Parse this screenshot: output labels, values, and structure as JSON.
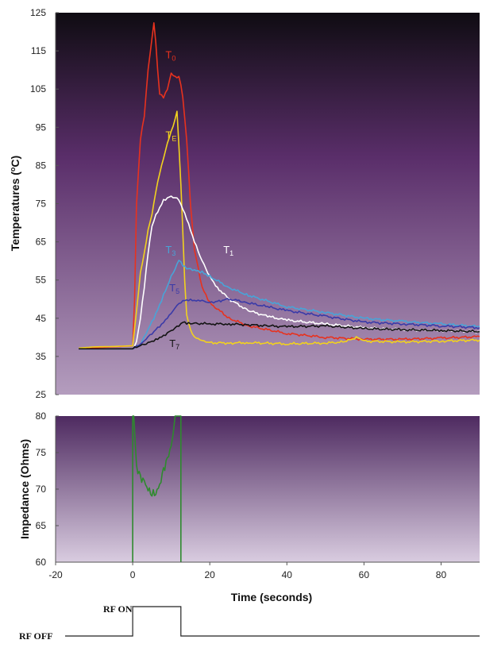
{
  "chart_data": [
    {
      "type": "line",
      "title": "",
      "xlabel": "",
      "ylabel": "Temperatures (°C)",
      "ylabel_parts": {
        "main": "Temperatures (",
        "sup": "o",
        "rest": "C)"
      },
      "xlim": [
        -20,
        90
      ],
      "ylim": [
        25,
        125
      ],
      "yticks": [
        25,
        35,
        45,
        55,
        65,
        75,
        85,
        95,
        105,
        115,
        125
      ],
      "grid": false,
      "colors": {
        "bg_top": "#0f0c12",
        "bg_mid": "#5a2e6a",
        "bg_bottom": "#b49dbe"
      },
      "series": [
        {
          "name": "T0",
          "label_main": "T",
          "label_sub": "0",
          "color": "#e8321e",
          "label_at": [
            8.5,
            113
          ],
          "x": [
            -14,
            -10,
            -5,
            0,
            0.5,
            1,
            2,
            3,
            4,
            5,
            5.5,
            6,
            6.5,
            7,
            8,
            9,
            10,
            11,
            12,
            12.5,
            13,
            14,
            15,
            16,
            18,
            20,
            25,
            30,
            40,
            50,
            60,
            70,
            80,
            90
          ],
          "y": [
            37,
            37.3,
            37.5,
            37.8,
            50,
            75,
            92,
            98,
            110,
            118,
            122,
            117,
            110,
            104,
            103,
            105,
            109,
            108,
            108,
            106,
            103,
            92,
            75,
            63,
            53,
            49,
            45,
            43,
            41,
            40,
            39.5,
            39.5,
            39.8,
            40.2
          ]
        },
        {
          "name": "TE",
          "label_main": "T",
          "label_sub": "E",
          "color": "#f2d21e",
          "label_at": [
            8.5,
            92
          ],
          "x": [
            -14,
            -10,
            -5,
            0,
            1,
            2,
            3,
            4,
            5,
            6,
            7,
            8,
            9,
            10,
            11,
            11.5,
            12,
            12.5,
            13,
            13.5,
            14,
            15,
            16,
            18,
            20,
            25,
            30,
            40,
            50,
            55,
            58,
            60,
            70,
            80,
            90
          ],
          "y": [
            37.2,
            37.5,
            37.6,
            37.8,
            47,
            57,
            62,
            68,
            72,
            78,
            83,
            87,
            91,
            94,
            97,
            99,
            90,
            80,
            68,
            55,
            46,
            42,
            40,
            39,
            38.6,
            38.5,
            38.6,
            38.3,
            38.5,
            38.8,
            40,
            39,
            38.8,
            39,
            39.3
          ]
        },
        {
          "name": "T1",
          "label_main": "T",
          "label_sub": "1",
          "color": "#ffffff",
          "label_at": [
            23.5,
            62
          ],
          "x": [
            -14,
            -10,
            -5,
            0,
            1,
            2,
            3,
            4,
            5,
            6,
            8,
            10,
            12,
            14,
            16,
            18,
            20,
            22,
            25,
            30,
            35,
            40,
            50,
            60,
            70,
            80,
            90
          ],
          "y": [
            37,
            37,
            37,
            37,
            39,
            45,
            53,
            62,
            69,
            72,
            76,
            77,
            76,
            71,
            65,
            60,
            56,
            53,
            50,
            47,
            45.5,
            44.5,
            43.5,
            42.5,
            42,
            41.8,
            41.5
          ]
        },
        {
          "name": "T3",
          "label_main": "T",
          "label_sub": "3",
          "color": "#48a4d8",
          "label_at": [
            8.5,
            62
          ],
          "x": [
            -14,
            -10,
            -5,
            0,
            2,
            4,
            6,
            8,
            10,
            11,
            12,
            13,
            14,
            16,
            18,
            20,
            25,
            30,
            40,
            50,
            60,
            70,
            80,
            90
          ],
          "y": [
            37,
            37,
            37,
            37,
            38,
            42,
            46,
            51,
            56,
            58,
            60.5,
            59,
            58,
            57.5,
            57,
            56,
            53,
            51,
            48,
            46.5,
            45,
            44.2,
            43.5,
            42.8
          ]
        },
        {
          "name": "T5",
          "label_main": "T",
          "label_sub": "5",
          "color": "#3a3aa8",
          "label_at": [
            9.5,
            52
          ],
          "x": [
            -14,
            -10,
            -5,
            0,
            2,
            4,
            6,
            8,
            10,
            12,
            14,
            16,
            18,
            20,
            22,
            25,
            28,
            30,
            35,
            40,
            50,
            60,
            70,
            80,
            90
          ],
          "y": [
            37,
            37,
            37,
            37,
            38,
            40,
            42,
            44,
            46.5,
            49,
            49.8,
            49.5,
            49.5,
            49,
            49.5,
            50,
            49.5,
            49,
            48,
            47,
            45.5,
            44,
            43.5,
            43,
            42.5
          ]
        },
        {
          "name": "T7",
          "label_main": "T",
          "label_sub": "7",
          "color": "#141414",
          "label_at": [
            9.5,
            37.5
          ],
          "x": [
            -14,
            -10,
            -5,
            0,
            2,
            4,
            6,
            8,
            10,
            12,
            13,
            14,
            16,
            20,
            25,
            30,
            35,
            40,
            50,
            60,
            70,
            80,
            90
          ],
          "y": [
            37,
            37,
            37,
            37,
            37.8,
            38.6,
            39.5,
            40.5,
            41.8,
            43,
            44,
            43.5,
            43.7,
            43.5,
            43.5,
            43.3,
            43,
            42.8,
            43,
            42.3,
            42,
            41.8,
            41.5
          ]
        }
      ]
    },
    {
      "type": "line",
      "title": "",
      "xlabel": "Time (seconds)",
      "ylabel": "Impedance (Ohms)",
      "xlim": [
        -20,
        90
      ],
      "ylim": [
        60,
        80
      ],
      "xticks": [
        -20,
        0,
        20,
        40,
        60,
        80
      ],
      "yticks": [
        60,
        65,
        70,
        75,
        80
      ],
      "grid": false,
      "colors": {
        "bg_top": "#4e2a60",
        "bg_bottom": "#d9cce0"
      },
      "series": [
        {
          "name": "",
          "color": "#2e8a2e",
          "x": [
            0,
            0,
            0.3,
            0.6,
            1,
            2,
            3,
            4,
            5,
            6,
            7,
            8,
            9,
            10,
            10.5,
            11,
            11.3,
            11.5,
            11.5,
            12.5,
            12.5,
            12.5
          ],
          "y": [
            60,
            80,
            80,
            77,
            73,
            71.5,
            71,
            70,
            69.5,
            69.5,
            70.5,
            72.5,
            74,
            76,
            78,
            80,
            80,
            80,
            80,
            80,
            60,
            60
          ]
        }
      ]
    },
    {
      "type": "step",
      "title": "",
      "labels": {
        "on": "RF ON",
        "off": "RF OFF"
      },
      "x": [
        -20,
        0,
        0,
        12.5,
        12.5,
        90
      ],
      "state": [
        "off",
        "off",
        "on",
        "on",
        "off",
        "off"
      ]
    }
  ]
}
